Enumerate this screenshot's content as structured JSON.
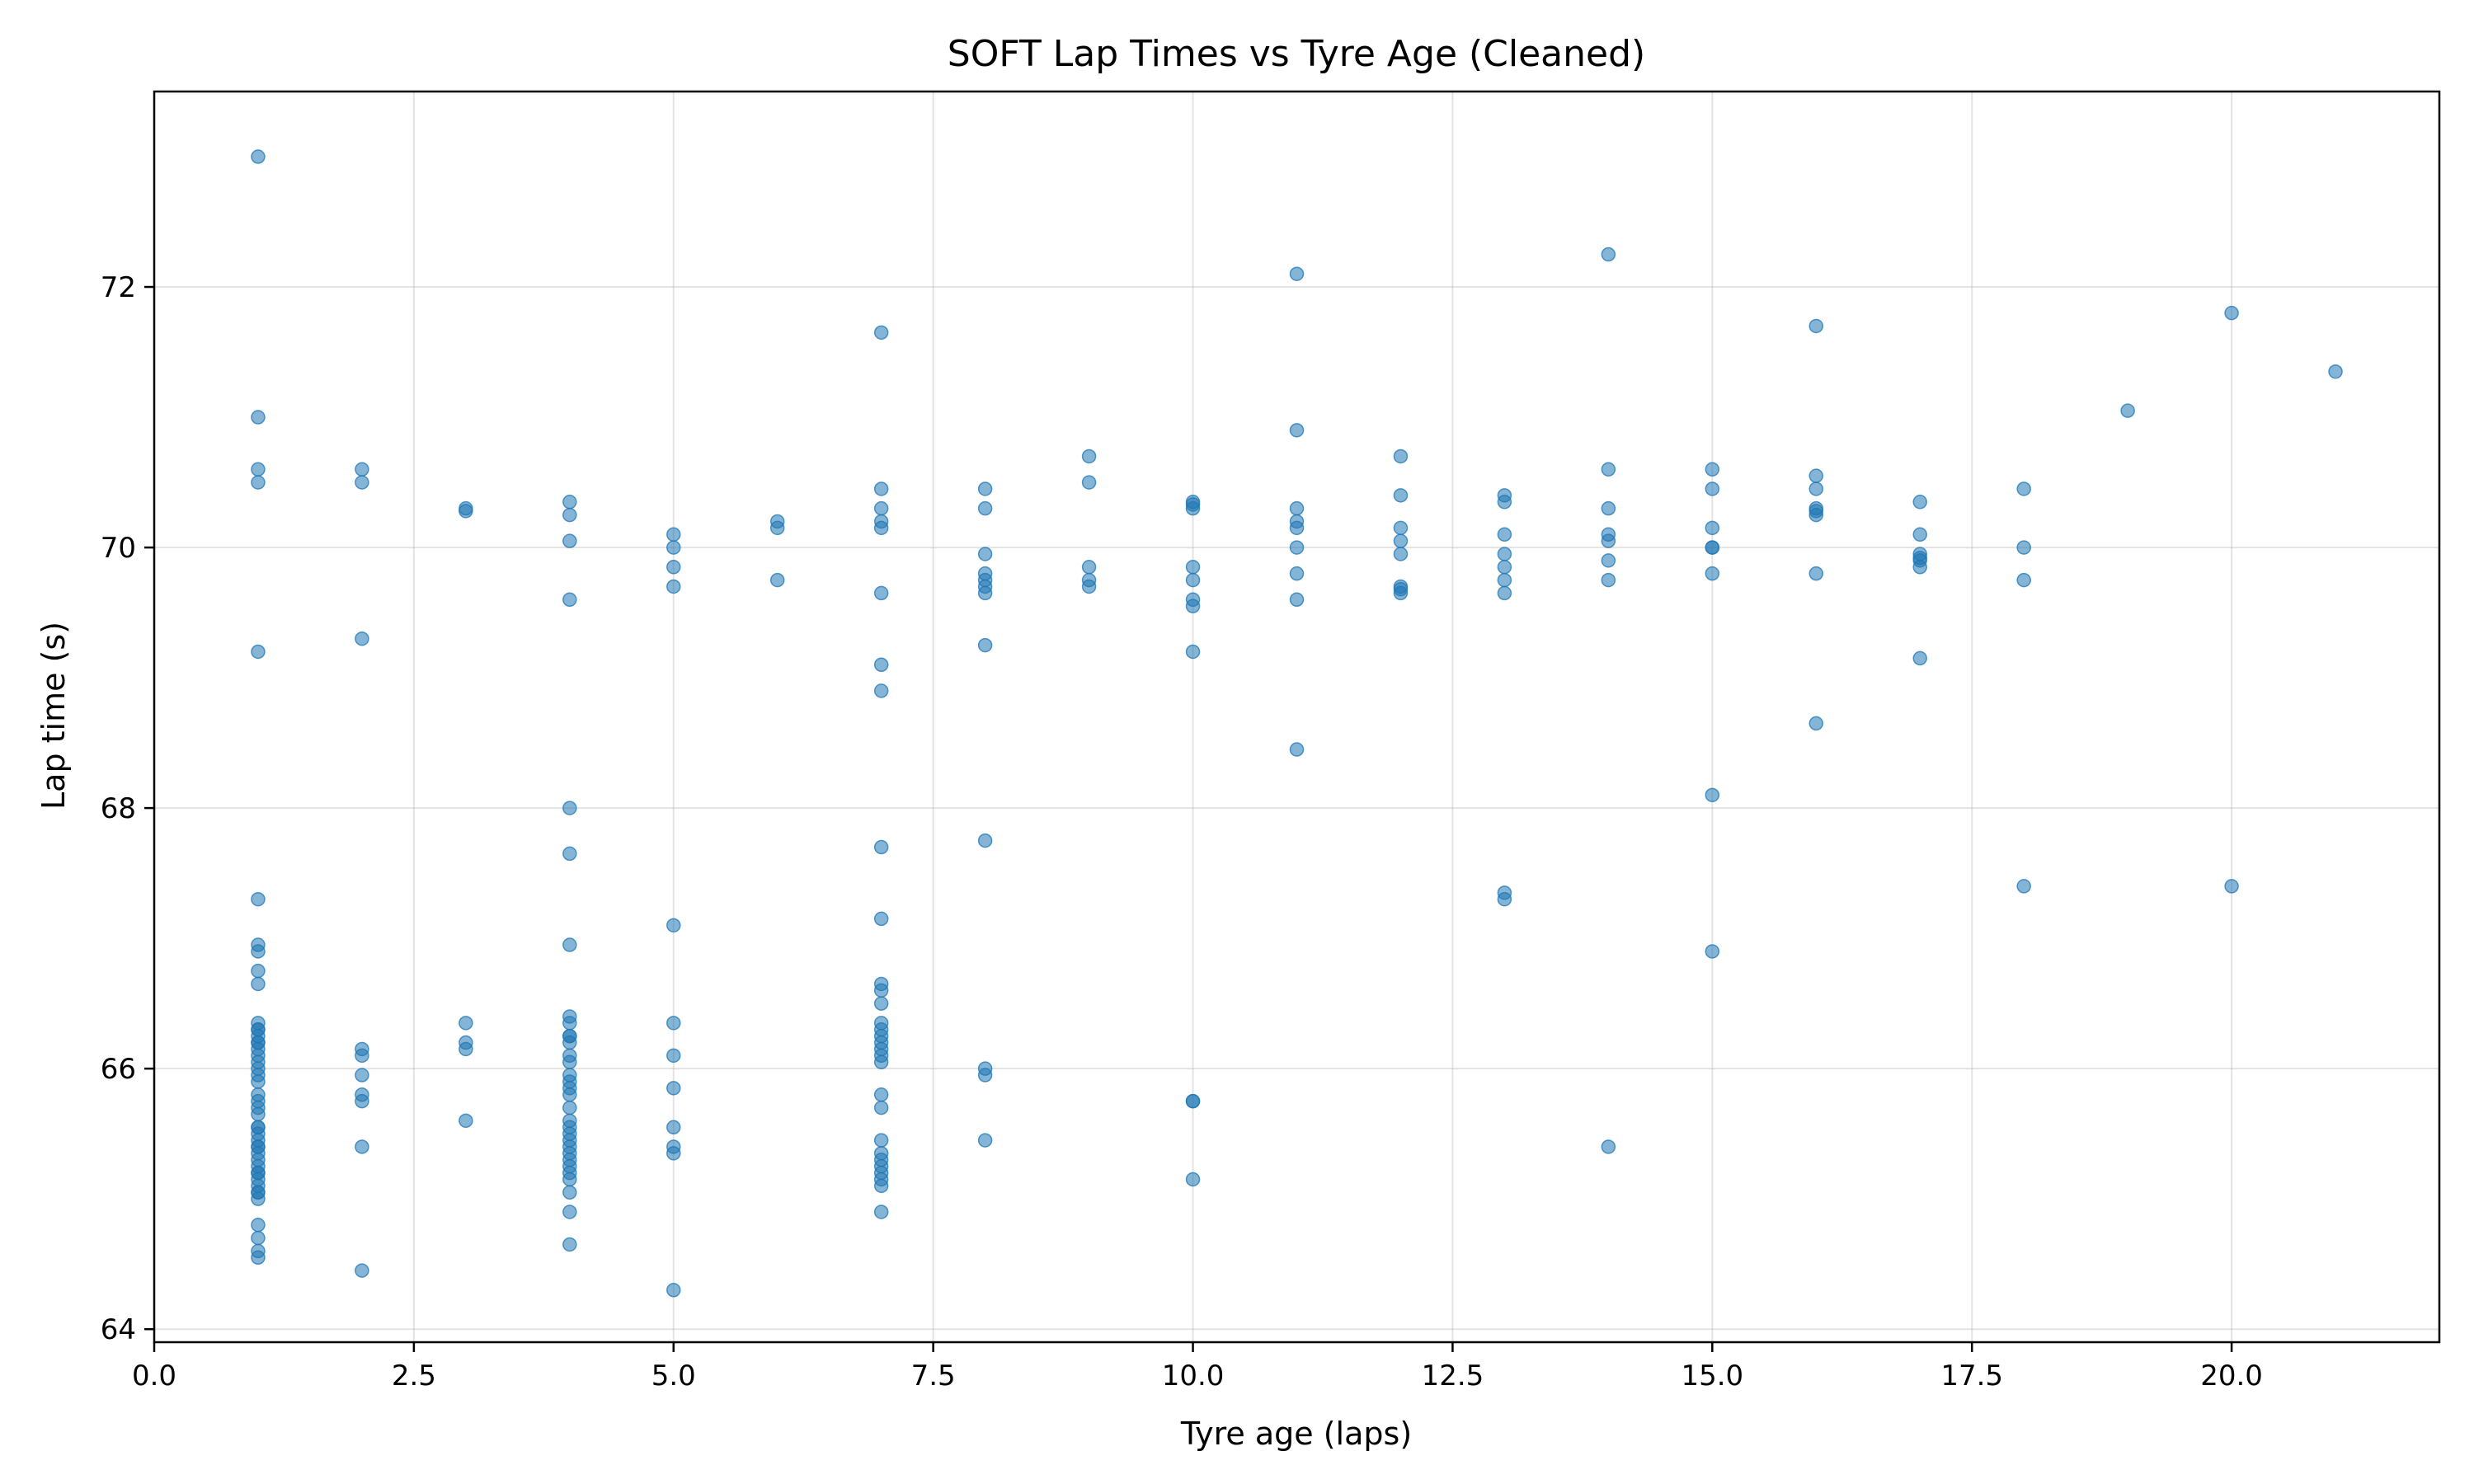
{
  "chart_data": {
    "type": "scatter",
    "title": "SOFT Lap Times vs Tyre Age (Cleaned)",
    "xlabel": "Tyre age (laps)",
    "ylabel": "Lap time (s)",
    "xlim": [
      0,
      22
    ],
    "ylim": [
      63.9,
      73.5
    ],
    "xticks": [
      0,
      2.5,
      5,
      7.5,
      10,
      12.5,
      15,
      17.5,
      20
    ],
    "xtick_labels": [
      "0.0",
      "2.5",
      "5.0",
      "7.5",
      "10.0",
      "12.5",
      "15.0",
      "17.5",
      "20.0"
    ],
    "yticks": [
      64,
      66,
      68,
      70,
      72
    ],
    "ytick_labels": [
      "64",
      "66",
      "68",
      "70",
      "72"
    ],
    "grid": true,
    "point_color": "#1f77b4",
    "series": [
      {
        "x": [
          1,
          1,
          1,
          1,
          1,
          1,
          1,
          1,
          1,
          1,
          1,
          1,
          1,
          1,
          1,
          1,
          1,
          1,
          1,
          1,
          1,
          1,
          1,
          1,
          1,
          1,
          1,
          1,
          1,
          1,
          1,
          1,
          1,
          1,
          1,
          1,
          1,
          1,
          1,
          1,
          1,
          1,
          1,
          1,
          1,
          1,
          2,
          2,
          2,
          2,
          2,
          2,
          2,
          2,
          2,
          2,
          3,
          3,
          3,
          3,
          3,
          3,
          4,
          4,
          4,
          4,
          4,
          4,
          4,
          4,
          4,
          4,
          4,
          4,
          4,
          4,
          4,
          4,
          4,
          4,
          4,
          4,
          4,
          4,
          4,
          4,
          4,
          4,
          4,
          4,
          4,
          4,
          4,
          4,
          5,
          5,
          5,
          5,
          5,
          5,
          5,
          5,
          5,
          5,
          5,
          5,
          6,
          6,
          6,
          7,
          7,
          7,
          7,
          7,
          7,
          7,
          7,
          7,
          7,
          7,
          7,
          7,
          7,
          7,
          7,
          7,
          7,
          7,
          7,
          7,
          7,
          7,
          7,
          7,
          7,
          7,
          7,
          7,
          7,
          8,
          8,
          8,
          8,
          8,
          8,
          8,
          8,
          8,
          8,
          8,
          8,
          9,
          9,
          9,
          9,
          9,
          10,
          10,
          10,
          10,
          10,
          10,
          10,
          10,
          10,
          10,
          10,
          11,
          11,
          11,
          11,
          11,
          11,
          11,
          11,
          11,
          12,
          12,
          12,
          12,
          12,
          12,
          12,
          12,
          13,
          13,
          13,
          13,
          13,
          13,
          13,
          13,
          13,
          14,
          14,
          14,
          14,
          14,
          14,
          14,
          14,
          15,
          15,
          15,
          15,
          15,
          15,
          15,
          15,
          16,
          16,
          16,
          16,
          16,
          16,
          16,
          16,
          17,
          17,
          17,
          17,
          17,
          17,
          17,
          18,
          18,
          18,
          18,
          19,
          20,
          20,
          21
        ],
        "y": [
          73.0,
          71.0,
          70.6,
          70.5,
          69.2,
          67.3,
          66.95,
          66.9,
          66.75,
          66.65,
          66.35,
          66.3,
          66.25,
          66.2,
          66.15,
          66.1,
          66.05,
          66.0,
          65.9,
          65.8,
          65.75,
          65.7,
          65.65,
          65.55,
          65.5,
          65.45,
          65.4,
          65.35,
          65.3,
          65.25,
          65.2,
          65.15,
          65.1,
          65.05,
          65.0,
          64.8,
          64.7,
          64.6,
          64.55,
          66.3,
          66.2,
          65.95,
          65.55,
          65.4,
          65.2,
          65.05,
          70.6,
          70.5,
          69.3,
          66.15,
          66.1,
          65.95,
          65.8,
          65.75,
          65.4,
          64.45,
          70.3,
          70.28,
          66.35,
          66.2,
          66.15,
          65.6,
          70.35,
          70.25,
          70.05,
          69.6,
          68.0,
          67.65,
          66.95,
          66.4,
          66.35,
          66.25,
          66.2,
          66.1,
          66.05,
          65.95,
          65.85,
          65.8,
          65.7,
          65.6,
          65.55,
          65.5,
          65.4,
          65.35,
          65.25,
          65.2,
          65.05,
          64.9,
          64.65,
          66.25,
          65.9,
          65.3,
          65.15,
          65.45,
          70.1,
          70.0,
          69.85,
          69.7,
          67.1,
          66.35,
          66.1,
          65.85,
          65.55,
          65.4,
          65.35,
          64.3,
          70.2,
          70.15,
          69.75,
          71.65,
          70.45,
          70.3,
          70.2,
          70.15,
          69.65,
          69.1,
          68.9,
          67.7,
          67.15,
          66.65,
          66.6,
          66.5,
          66.35,
          66.3,
          66.25,
          66.2,
          66.15,
          66.1,
          65.8,
          65.7,
          65.45,
          65.35,
          65.3,
          65.25,
          65.2,
          65.15,
          65.1,
          64.9,
          66.05,
          70.45,
          70.3,
          69.95,
          69.75,
          69.7,
          69.65,
          69.25,
          67.75,
          66.0,
          65.95,
          65.45,
          69.8,
          70.7,
          70.5,
          69.85,
          69.75,
          69.7,
          70.35,
          70.3,
          69.85,
          69.75,
          69.6,
          69.55,
          69.2,
          65.75,
          65.75,
          65.15,
          70.33,
          72.1,
          70.9,
          70.3,
          70.2,
          70.15,
          70.0,
          69.8,
          69.6,
          68.45,
          70.7,
          70.4,
          70.15,
          70.05,
          69.95,
          69.7,
          69.65,
          69.68,
          70.4,
          70.35,
          70.1,
          69.95,
          69.85,
          69.75,
          69.65,
          67.35,
          67.3,
          72.25,
          70.6,
          70.3,
          70.1,
          70.05,
          69.9,
          69.75,
          65.4,
          70.6,
          70.45,
          70.15,
          70.0,
          69.8,
          68.1,
          66.9,
          70.0,
          71.7,
          70.55,
          70.45,
          70.3,
          70.25,
          69.8,
          68.65,
          70.28,
          70.35,
          70.1,
          69.95,
          69.9,
          69.85,
          69.15,
          69.92,
          70.45,
          70.0,
          69.75,
          67.4,
          71.05,
          71.8,
          67.4,
          71.35
        ]
      }
    ]
  }
}
